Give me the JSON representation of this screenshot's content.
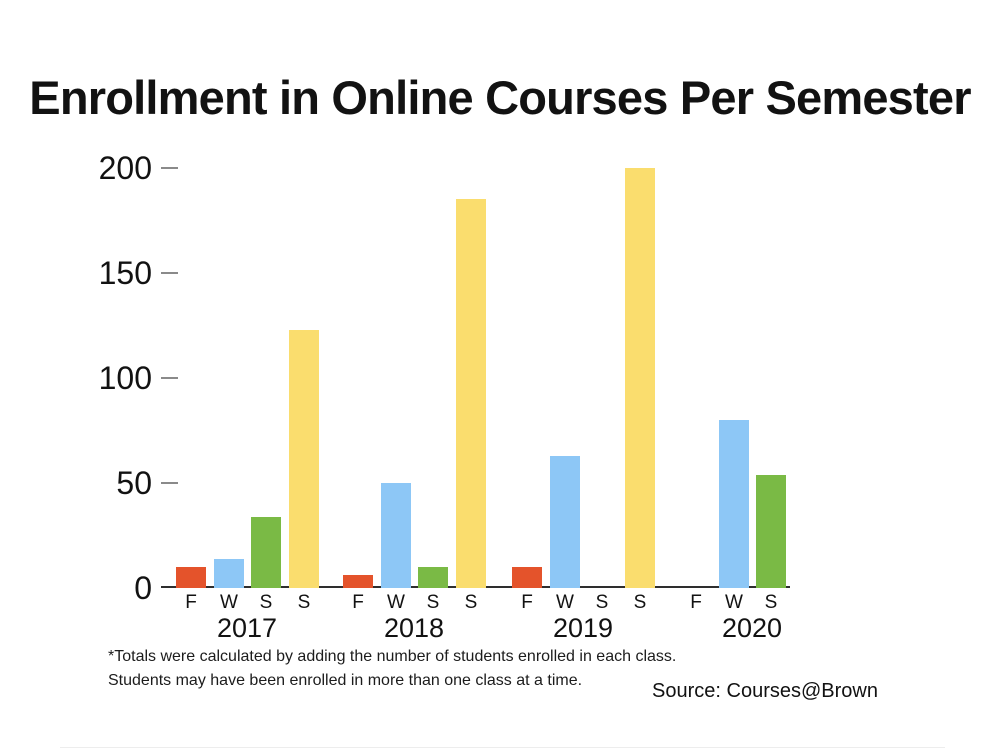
{
  "chart_data": {
    "type": "bar",
    "title": "Enrollment in Online Courses Per Semester",
    "xlabel": "",
    "ylabel": "",
    "ylim": [
      0,
      210
    ],
    "y_ticks": [
      0,
      50,
      100,
      150,
      200
    ],
    "grid": false,
    "legend": "none",
    "series_colors": {
      "fall": "#E4532B",
      "winter": "#8DC7F6",
      "spring": "#7ABA45",
      "summer": "#FADD6E"
    },
    "groups": [
      {
        "year": "2017",
        "bars": [
          {
            "label": "F",
            "semester": "Fall",
            "value": 10,
            "color_key": "fall"
          },
          {
            "label": "W",
            "semester": "Winter",
            "value": 14,
            "color_key": "winter"
          },
          {
            "label": "S",
            "semester": "Spring",
            "value": 34,
            "color_key": "spring"
          },
          {
            "label": "S",
            "semester": "Summer",
            "value": 123,
            "color_key": "summer"
          }
        ]
      },
      {
        "year": "2018",
        "bars": [
          {
            "label": "F",
            "semester": "Fall",
            "value": 6,
            "color_key": "fall"
          },
          {
            "label": "W",
            "semester": "Winter",
            "value": 50,
            "color_key": "winter"
          },
          {
            "label": "S",
            "semester": "Spring",
            "value": 10,
            "color_key": "spring"
          },
          {
            "label": "S",
            "semester": "Summer",
            "value": 185,
            "color_key": "summer"
          }
        ]
      },
      {
        "year": "2019",
        "bars": [
          {
            "label": "F",
            "semester": "Fall",
            "value": 10,
            "color_key": "fall"
          },
          {
            "label": "W",
            "semester": "Winter",
            "value": 63,
            "color_key": "winter"
          },
          {
            "label": "S",
            "semester": "Spring",
            "value": 0,
            "color_key": "spring"
          },
          {
            "label": "S",
            "semester": "Summer",
            "value": 200,
            "color_key": "summer"
          }
        ]
      },
      {
        "year": "2020",
        "bars": [
          {
            "label": "F",
            "semester": "Fall",
            "value": 0,
            "color_key": "fall"
          },
          {
            "label": "W",
            "semester": "Winter",
            "value": 80,
            "color_key": "winter"
          },
          {
            "label": "S",
            "semester": "Spring",
            "value": 54,
            "color_key": "spring"
          }
        ]
      }
    ],
    "footnote_line1": "*Totals were calculated by adding the number of students enrolled in each class.",
    "footnote_line2": "Students may have been enrolled in more than one class at a time.",
    "source": "Source: Courses@Brown"
  }
}
